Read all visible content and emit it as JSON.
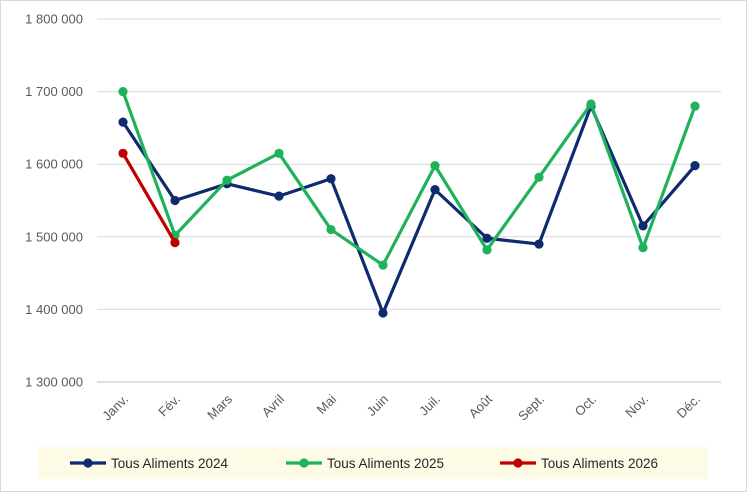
{
  "chart_data": {
    "type": "line",
    "title": "",
    "xlabel": "",
    "ylabel": "",
    "ylim": [
      1300000,
      1800000
    ],
    "y_ticks": [
      1300000,
      1400000,
      1500000,
      1600000,
      1700000,
      1800000
    ],
    "y_tick_labels": [
      "1 300 000",
      "1 400 000",
      "1 500 000",
      "1 600 000",
      "1 700 000",
      "1 800 000"
    ],
    "grid": true,
    "legend_position": "bottom",
    "categories": [
      "Janv.",
      "Fév.",
      "Mars",
      "Avril",
      "Mai",
      "Juin",
      "Juil.",
      "Août",
      "Sept.",
      "Oct.",
      "Nov.",
      "Déc."
    ],
    "series": [
      {
        "name": "Tous Aliments 2024",
        "color": "#0f2a6e",
        "values": [
          1658000,
          1550000,
          1573000,
          1556000,
          1580000,
          1395000,
          1565000,
          1498000,
          1490000,
          1680000,
          1515000,
          1598000
        ]
      },
      {
        "name": "Tous Aliments 2025",
        "color": "#1fb25a",
        "values": [
          1700000,
          1502000,
          1578000,
          1615000,
          1510000,
          1461000,
          1598000,
          1482000,
          1582000,
          1683000,
          1485000,
          1680000
        ]
      },
      {
        "name": "Tous Aliments 2026",
        "color": "#c00000",
        "values": [
          1615000,
          1492000,
          null,
          null,
          null,
          null,
          null,
          null,
          null,
          null,
          null,
          null
        ]
      }
    ]
  }
}
